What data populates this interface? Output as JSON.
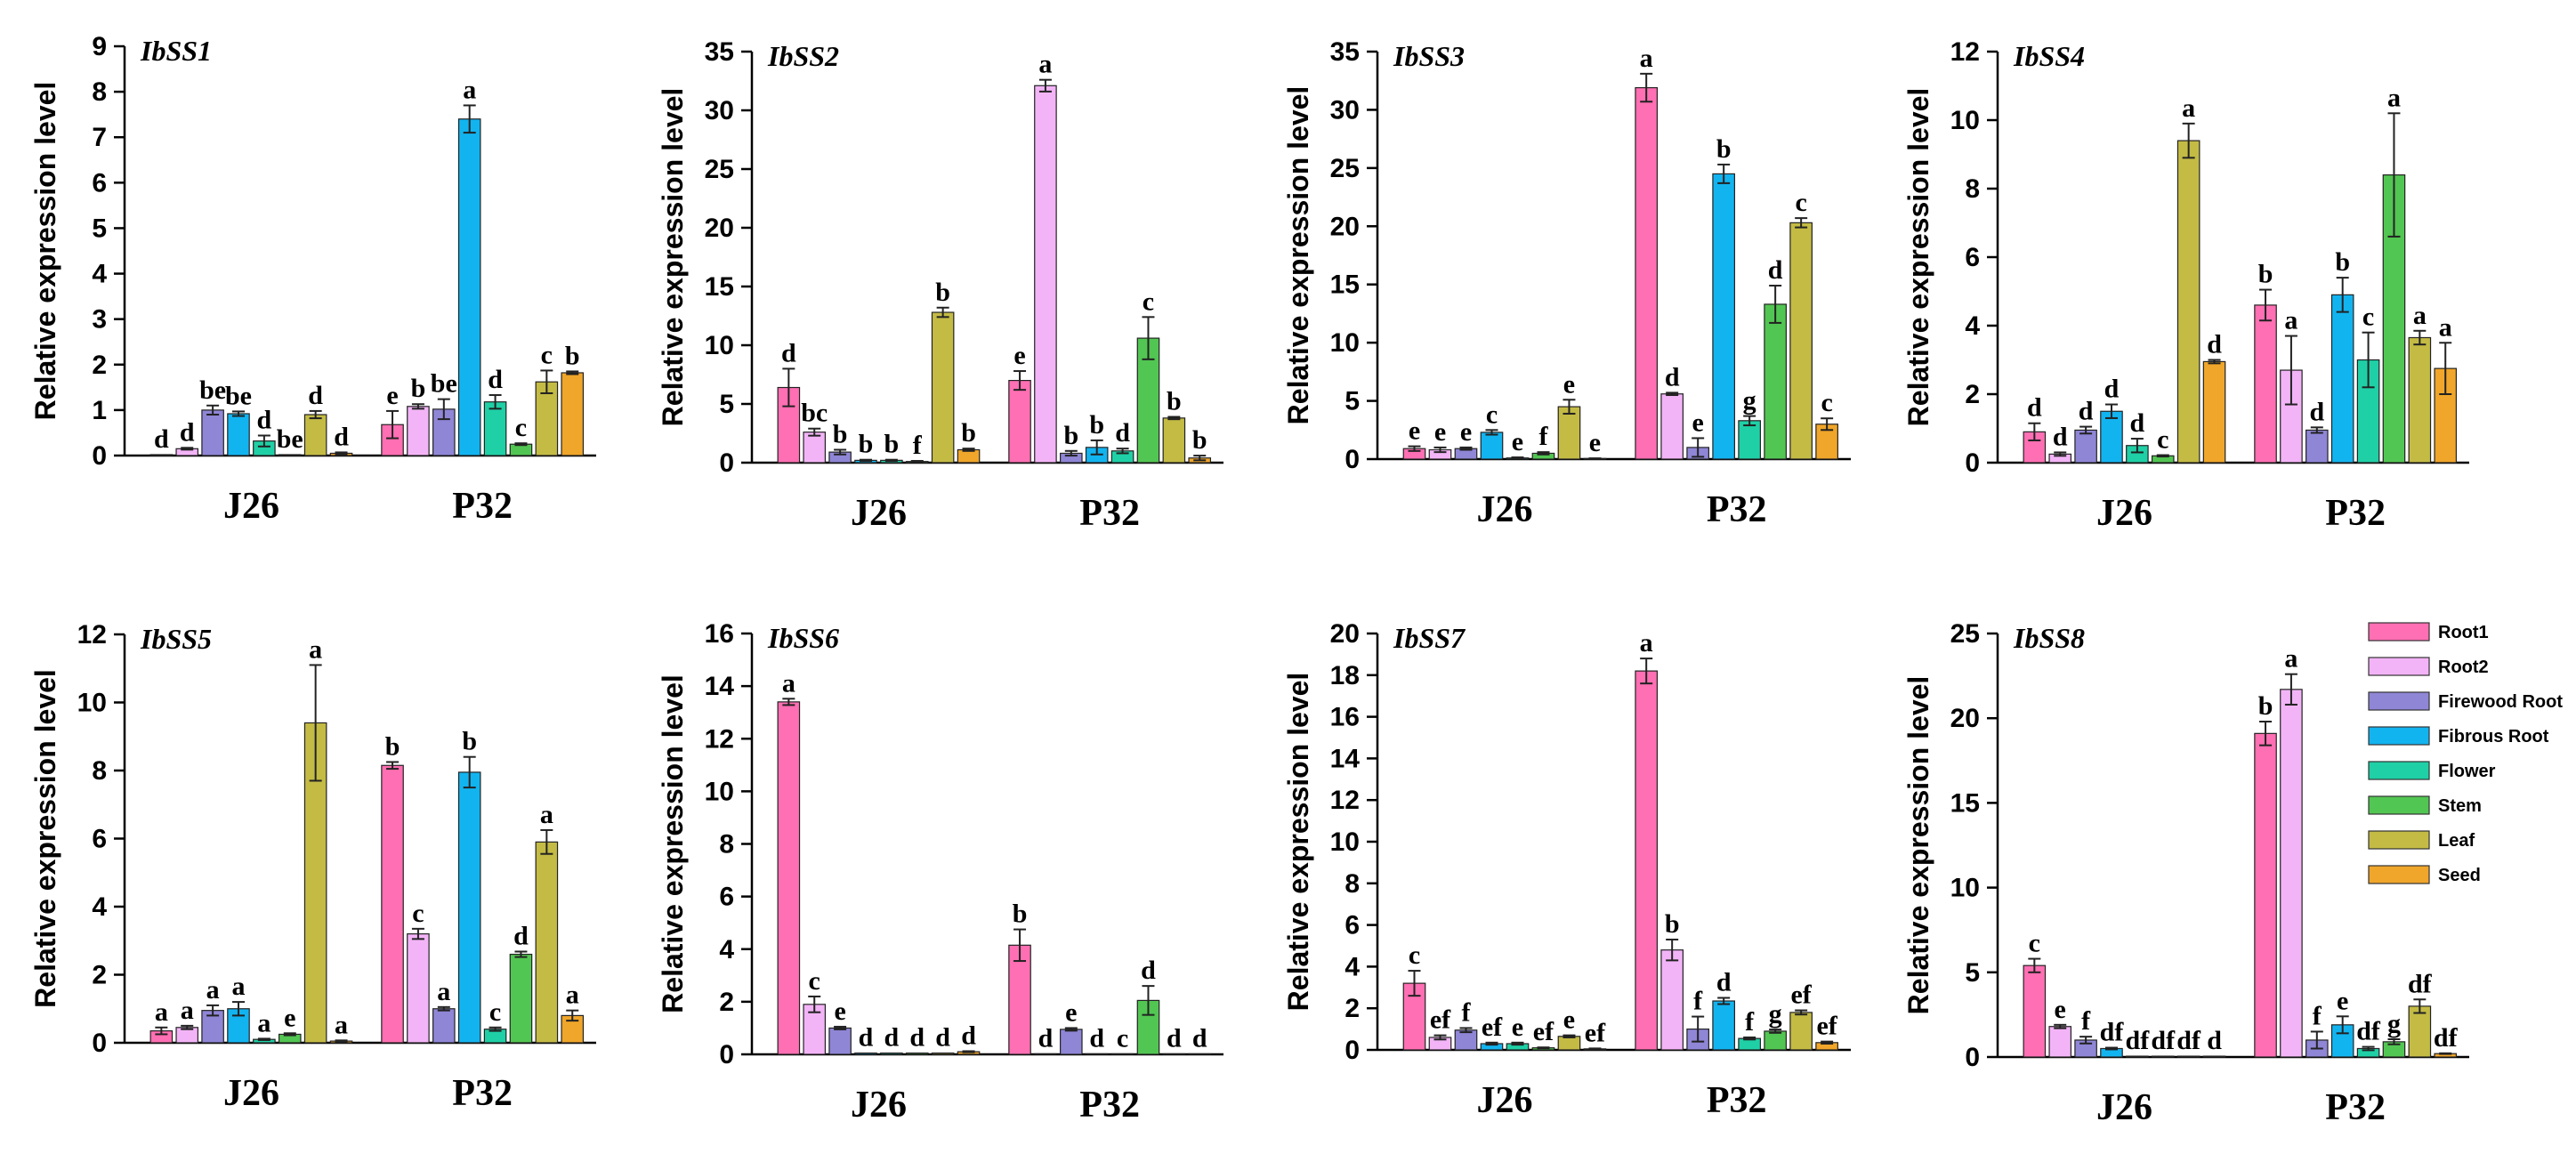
{
  "chart_data": {
    "type": "bar",
    "ylabel": "Relative expression level",
    "groups": [
      "J26",
      "P32"
    ],
    "series": [
      {
        "name": "Root1",
        "color": "#ff6fb3"
      },
      {
        "name": "Root2",
        "color": "#f3b4f7"
      },
      {
        "name": "Firewood Root",
        "color": "#8f86d6"
      },
      {
        "name": "Fibrous Root",
        "color": "#12b4f0"
      },
      {
        "name": "Flower",
        "color": "#1fd0a6"
      },
      {
        "name": "Stem",
        "color": "#52c652"
      },
      {
        "name": "Leaf",
        "color": "#c4bb45"
      },
      {
        "name": "Seed",
        "color": "#f0a62a"
      }
    ],
    "panels": [
      {
        "title": "IbSS1",
        "ylim": [
          0,
          9
        ],
        "yticks": [
          "0",
          "1",
          "2",
          "3",
          "4",
          "5",
          "6",
          "7",
          "8",
          "9"
        ],
        "values": [
          [
            0.02,
            0.15,
            1.0,
            0.92,
            0.32,
            0.02,
            0.9,
            0.05
          ],
          [
            0.68,
            1.08,
            1.02,
            7.4,
            1.18,
            0.25,
            1.62,
            1.82
          ]
        ],
        "errors": [
          [
            0,
            0.02,
            0.1,
            0.05,
            0.12,
            0,
            0.08,
            0.02
          ],
          [
            0.3,
            0.05,
            0.22,
            0.3,
            0.15,
            0.02,
            0.25,
            0.03
          ]
        ],
        "labels": [
          [
            "d",
            "d",
            "be",
            "be",
            "d",
            "be",
            "d",
            "d"
          ],
          [
            "e",
            "b",
            "be",
            "a",
            "d",
            "c",
            "c",
            "b"
          ]
        ]
      },
      {
        "title": "IbSS2",
        "ylim": [
          0,
          35
        ],
        "yticks": [
          "0",
          "5",
          "10",
          "15",
          "20",
          "25",
          "30",
          "35"
        ],
        "values": [
          [
            6.4,
            2.6,
            0.9,
            0.2,
            0.2,
            0.1,
            12.8,
            1.1
          ],
          [
            7.0,
            32.1,
            0.8,
            1.3,
            1.0,
            10.6,
            3.8,
            0.4
          ]
        ],
        "errors": [
          [
            1.6,
            0.3,
            0.2,
            0.05,
            0.05,
            0.05,
            0.4,
            0.1
          ],
          [
            0.8,
            0.5,
            0.2,
            0.6,
            0.2,
            1.8,
            0.1,
            0.2
          ]
        ],
        "labels": [
          [
            "d",
            "bc",
            "b",
            "b",
            "b",
            "f",
            "b",
            "b"
          ],
          [
            "e",
            "a",
            "b",
            "b",
            "d",
            "c",
            "b",
            "b"
          ]
        ]
      },
      {
        "title": "IbSS3",
        "ylim": [
          0,
          35
        ],
        "yticks": [
          "0",
          "5",
          "10",
          "15",
          "20",
          "25",
          "30",
          "35"
        ],
        "values": [
          [
            0.9,
            0.8,
            0.9,
            2.3,
            0.1,
            0.5,
            4.5,
            0.05
          ],
          [
            31.9,
            5.6,
            1.0,
            24.5,
            3.3,
            13.3,
            20.3,
            3.0
          ]
        ],
        "errors": [
          [
            0.2,
            0.2,
            0.1,
            0.2,
            0.05,
            0.1,
            0.6,
            0.02
          ],
          [
            1.2,
            0.1,
            0.8,
            0.8,
            0.4,
            1.6,
            0.4,
            0.5
          ]
        ],
        "labels": [
          [
            "e",
            "e",
            "e",
            "c",
            "e",
            "f",
            "e",
            "e"
          ],
          [
            "a",
            "d",
            "e",
            "b",
            "g",
            "d",
            "c",
            "c"
          ]
        ]
      },
      {
        "title": "IbSS4",
        "ylim": [
          0,
          12
        ],
        "yticks": [
          "0",
          "2",
          "4",
          "6",
          "8",
          "10",
          "12"
        ],
        "values": [
          [
            0.9,
            0.25,
            0.95,
            1.5,
            0.5,
            0.2,
            9.4,
            2.95
          ],
          [
            4.6,
            2.7,
            0.95,
            4.9,
            3.0,
            8.4,
            3.65,
            2.75
          ]
        ],
        "errors": [
          [
            0.25,
            0.05,
            0.1,
            0.2,
            0.2,
            0.02,
            0.5,
            0.05
          ],
          [
            0.45,
            1.0,
            0.08,
            0.5,
            0.8,
            1.8,
            0.2,
            0.75
          ]
        ],
        "labels": [
          [
            "d",
            "d",
            "d",
            "d",
            "d",
            "c",
            "a",
            "d"
          ],
          [
            "b",
            "a",
            "d",
            "b",
            "c",
            "a",
            "a",
            "a"
          ]
        ]
      },
      {
        "title": "IbSS5",
        "ylim": [
          0,
          12
        ],
        "yticks": [
          "0",
          "2",
          "4",
          "6",
          "8",
          "10",
          "12"
        ],
        "values": [
          [
            0.35,
            0.45,
            0.95,
            1.0,
            0.1,
            0.25,
            9.4,
            0.05
          ],
          [
            8.15,
            3.2,
            1.0,
            7.95,
            0.4,
            2.6,
            5.9,
            0.8
          ]
        ],
        "errors": [
          [
            0.1,
            0.05,
            0.15,
            0.2,
            0.02,
            0.03,
            1.7,
            0.02
          ],
          [
            0.1,
            0.15,
            0.05,
            0.45,
            0.05,
            0.08,
            0.35,
            0.15
          ]
        ],
        "labels": [
          [
            "a",
            "a",
            "a",
            "a",
            "a",
            "e",
            "a",
            "a"
          ],
          [
            "b",
            "c",
            "a",
            "b",
            "c",
            "d",
            "a",
            "a"
          ]
        ]
      },
      {
        "title": "IbSS6",
        "ylim": [
          0,
          16
        ],
        "yticks": [
          "0",
          "2",
          "4",
          "6",
          "8",
          "10",
          "12",
          "14",
          "16"
        ],
        "values": [
          [
            13.4,
            1.9,
            1.0,
            0.05,
            0.05,
            0.05,
            0.05,
            0.1
          ],
          [
            4.15,
            0.02,
            0.95,
            0.02,
            0.02,
            2.05,
            0.02,
            0.02
          ]
        ],
        "errors": [
          [
            0.12,
            0.3,
            0.05,
            0,
            0,
            0,
            0,
            0.02
          ],
          [
            0.6,
            0,
            0.05,
            0,
            0,
            0.55,
            0,
            0
          ]
        ],
        "labels": [
          [
            "a",
            "c",
            "e",
            "d",
            "d",
            "d",
            "d",
            "d"
          ],
          [
            "b",
            "d",
            "e",
            "d",
            "c",
            "d",
            "d",
            "d"
          ]
        ]
      },
      {
        "title": "IbSS7",
        "ylim": [
          0,
          20
        ],
        "yticks": [
          "0",
          "2",
          "4",
          "6",
          "8",
          "10",
          "12",
          "14",
          "16",
          "18",
          "20"
        ],
        "values": [
          [
            3.2,
            0.6,
            0.95,
            0.3,
            0.3,
            0.1,
            0.65,
            0.05
          ],
          [
            18.2,
            4.8,
            1.0,
            2.35,
            0.55,
            0.9,
            1.8,
            0.35
          ]
        ],
        "errors": [
          [
            0.6,
            0.1,
            0.1,
            0.05,
            0.05,
            0.02,
            0.05,
            0.02
          ],
          [
            0.6,
            0.5,
            0.6,
            0.15,
            0.05,
            0.08,
            0.1,
            0.05
          ]
        ],
        "labels": [
          [
            "c",
            "ef",
            "f",
            "ef",
            "e",
            "ef",
            "e",
            "ef"
          ],
          [
            "a",
            "b",
            "f",
            "d",
            "f",
            "g",
            "ef",
            "ef"
          ]
        ]
      },
      {
        "title": "IbSS8",
        "ylim": [
          0,
          25
        ],
        "yticks": [
          "0",
          "5",
          "10",
          "15",
          "20",
          "25"
        ],
        "values": [
          [
            5.4,
            1.8,
            1.0,
            0.5,
            0.05,
            0.05,
            0.05,
            0.05
          ],
          [
            19.1,
            21.7,
            1.0,
            1.9,
            0.5,
            0.9,
            3.0,
            0.2
          ]
        ],
        "errors": [
          [
            0.4,
            0.1,
            0.2,
            0.05,
            0,
            0,
            0,
            0
          ],
          [
            0.7,
            0.9,
            0.5,
            0.5,
            0.1,
            0.15,
            0.4,
            0.02
          ]
        ],
        "labels": [
          [
            "c",
            "e",
            "f",
            "df",
            "df",
            "df",
            "df",
            "d"
          ],
          [
            "b",
            "a",
            "f",
            "e",
            "df",
            "g",
            "df",
            "df"
          ]
        ]
      }
    ]
  }
}
